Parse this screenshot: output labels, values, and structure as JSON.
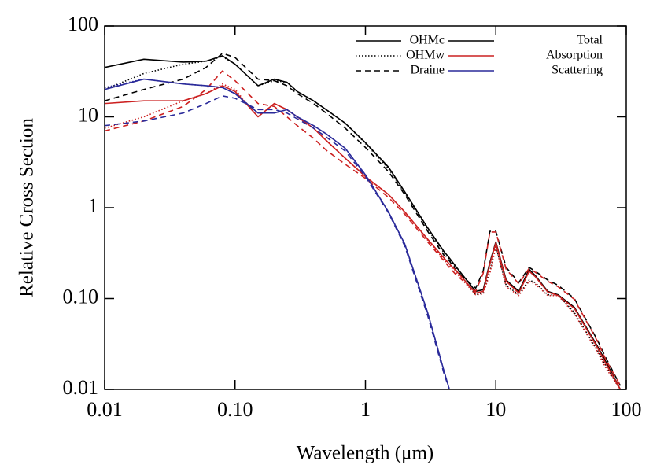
{
  "chart_data": {
    "type": "line",
    "xlabel": "Wavelength (μm)",
    "ylabel": "Relative Cross Section",
    "xscale": "log",
    "yscale": "log",
    "xlim": [
      0.01,
      100
    ],
    "ylim": [
      0.01,
      100
    ],
    "xticks": [
      0.01,
      {
        "value": 0.1,
        "label": "0.10"
      },
      1,
      10,
      100
    ],
    "yticks": [
      0.01,
      {
        "value": 0.1,
        "label": "0.10"
      },
      1,
      10,
      100
    ],
    "legend_position": "upper right",
    "legend": {
      "styles": [
        {
          "name": "OHMc",
          "dash": "solid"
        },
        {
          "name": "OHMw",
          "dash": "dotted"
        },
        {
          "name": "Draine",
          "dash": "dashed"
        }
      ],
      "colors": [
        {
          "name": "Total",
          "color": "#000000"
        },
        {
          "name": "Absorption",
          "color": "#cc2020"
        },
        {
          "name": "Scattering",
          "color": "#2a2a9a"
        }
      ]
    },
    "x": [
      0.01,
      0.02,
      0.04,
      0.06,
      0.08,
      0.1,
      0.15,
      0.2,
      0.25,
      0.3,
      0.4,
      0.5,
      0.7,
      1,
      1.5,
      2,
      3,
      4,
      4.4,
      5,
      7,
      8,
      9,
      10,
      12,
      15,
      18,
      20,
      25,
      30,
      40,
      60,
      70,
      90
    ],
    "series": [
      {
        "style": "solid",
        "color": "#000000",
        "values": [
          35,
          43,
          40,
          41,
          47,
          38,
          22,
          26,
          24,
          19,
          15,
          12,
          8.5,
          5.2,
          2.8,
          1.5,
          0.6,
          0.33,
          0.28,
          0.22,
          0.12,
          0.125,
          0.25,
          0.42,
          0.16,
          0.12,
          0.21,
          0.18,
          0.12,
          0.11,
          0.08,
          0.03,
          0.02,
          0.01
        ]
      },
      {
        "style": "dotted",
        "color": "#000000",
        "values": [
          20,
          30,
          38,
          41,
          46,
          38,
          22,
          25,
          24,
          19,
          15,
          12,
          8.5,
          5.1,
          2.7,
          1.45,
          0.58,
          0.32,
          0.27,
          0.21,
          0.11,
          0.115,
          0.2,
          0.38,
          0.14,
          0.11,
          0.16,
          0.15,
          0.11,
          0.11,
          0.07,
          0.027,
          0.018,
          0.01
        ]
      },
      {
        "style": "dashed",
        "color": "#000000",
        "values": [
          15,
          20,
          26,
          35,
          50,
          45,
          26,
          25,
          22,
          18,
          14,
          11,
          7.5,
          4.6,
          2.5,
          1.4,
          0.55,
          0.3,
          0.26,
          0.2,
          0.13,
          0.2,
          0.55,
          0.55,
          0.22,
          0.15,
          0.22,
          0.2,
          0.16,
          0.14,
          0.1,
          0.035,
          0.022,
          0.011
        ]
      },
      {
        "style": "solid",
        "color": "#cc2020",
        "values": [
          14,
          15,
          15,
          18,
          22,
          19,
          10,
          14,
          12,
          10,
          7.5,
          5.5,
          3.5,
          2.2,
          1.4,
          0.9,
          0.45,
          0.28,
          0.24,
          0.2,
          0.115,
          0.12,
          0.24,
          0.41,
          0.155,
          0.115,
          0.2,
          0.175,
          0.118,
          0.108,
          0.078,
          0.029,
          0.019,
          0.01
        ]
      },
      {
        "style": "dotted",
        "color": "#cc2020",
        "values": [
          7.5,
          10,
          15,
          18,
          23,
          20,
          10,
          14,
          12,
          10,
          7.5,
          5.5,
          3.5,
          2.2,
          1.4,
          0.9,
          0.44,
          0.27,
          0.23,
          0.19,
          0.11,
          0.112,
          0.19,
          0.37,
          0.135,
          0.108,
          0.155,
          0.145,
          0.108,
          0.108,
          0.068,
          0.026,
          0.017,
          0.01
        ]
      },
      {
        "style": "dashed",
        "color": "#cc2020",
        "values": [
          7,
          9,
          13,
          20,
          32,
          25,
          14,
          13,
          10,
          8,
          5.8,
          4.3,
          3,
          2.1,
          1.3,
          0.85,
          0.42,
          0.26,
          0.22,
          0.18,
          0.12,
          0.19,
          0.54,
          0.54,
          0.21,
          0.145,
          0.215,
          0.195,
          0.155,
          0.135,
          0.098,
          0.034,
          0.021,
          0.011
        ]
      },
      {
        "style": "solid",
        "color": "#2a2a9a",
        "values": [
          20,
          26,
          23,
          22,
          21,
          18,
          11,
          11,
          12,
          10,
          8,
          6.5,
          4.5,
          2.3,
          0.9,
          0.4,
          0.07,
          0.016,
          0.01,
          null,
          null,
          null,
          null,
          null,
          null,
          null,
          null,
          null,
          null,
          null,
          null,
          null,
          null,
          null
        ]
      },
      {
        "style": "dotted",
        "color": "#2a2a9a",
        "values": [
          21,
          26,
          23,
          22,
          21,
          18,
          11,
          11,
          12,
          10,
          8,
          6.5,
          4.5,
          2.3,
          0.9,
          0.4,
          0.07,
          0.016,
          0.01,
          null,
          null,
          null,
          null,
          null,
          null,
          null,
          null,
          null,
          null,
          null,
          null,
          null,
          null,
          null
        ]
      },
      {
        "style": "dashed",
        "color": "#2a2a9a",
        "values": [
          8,
          9,
          11,
          14,
          17,
          16,
          12,
          12,
          11,
          9.5,
          7.5,
          6,
          4.2,
          2.2,
          0.88,
          0.38,
          0.065,
          0.015,
          0.01,
          null,
          null,
          null,
          null,
          null,
          null,
          null,
          null,
          null,
          null,
          null,
          null,
          null,
          null,
          null
        ]
      }
    ]
  }
}
